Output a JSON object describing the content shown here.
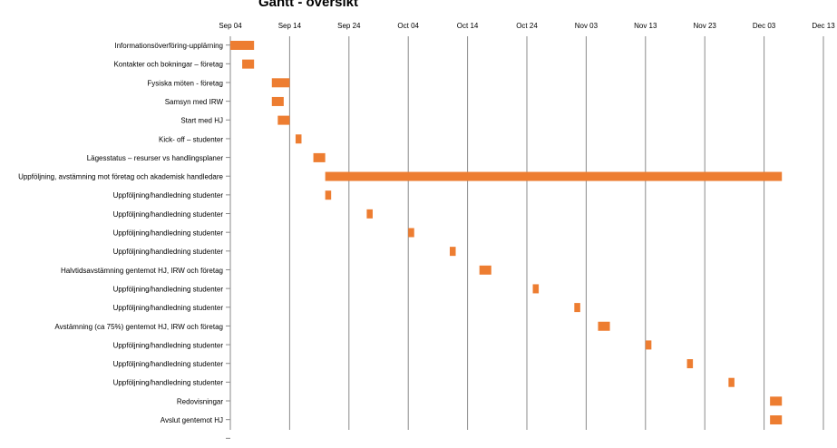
{
  "chart_data": {
    "type": "bar",
    "subtype": "gantt",
    "title": "Gantt - översikt",
    "xlabel": "",
    "ylabel": "",
    "grid": true,
    "legend": "none",
    "bar_color": "#ED7D31",
    "x_axis": {
      "start": "2016-09-04",
      "end": "2016-12-13",
      "ticks": [
        "2016-09-04",
        "2016-09-14",
        "2016-09-24",
        "2016-10-04",
        "2016-10-14",
        "2016-10-24",
        "2016-11-03",
        "2016-11-13",
        "2016-11-23",
        "2016-12-03",
        "2016-12-13"
      ],
      "tick_labels": [
        "Sep 04",
        "Sep 14",
        "Sep 24",
        "Oct 04",
        "Oct 14",
        "Oct 24",
        "Nov 03",
        "Nov 13",
        "Nov 23",
        "Dec 03",
        "Dec 13"
      ]
    },
    "tasks": [
      {
        "label": "Informationsöverföring-upplärning",
        "start": "2016-09-04",
        "end": "2016-09-08"
      },
      {
        "label": "Kontakter och bokningar – företag",
        "start": "2016-09-06",
        "end": "2016-09-08"
      },
      {
        "label": "Fysiska möten - företag",
        "start": "2016-09-11",
        "end": "2016-09-14"
      },
      {
        "label": "Samsyn med IRW",
        "start": "2016-09-11",
        "end": "2016-09-13"
      },
      {
        "label": "Start med HJ",
        "start": "2016-09-12",
        "end": "2016-09-14"
      },
      {
        "label": "Kick- off – studenter",
        "start": "2016-09-15",
        "end": "2016-09-16"
      },
      {
        "label": "Lägesstatus – resurser vs handlingsplaner",
        "start": "2016-09-18",
        "end": "2016-09-20"
      },
      {
        "label": "Uppföljning, avstämning mot företag och akademisk handledare",
        "start": "2016-09-20",
        "end": "2016-12-06"
      },
      {
        "label": "Uppföljning/handledning studenter",
        "start": "2016-09-20",
        "end": "2016-09-21"
      },
      {
        "label": "Uppföljning/handledning studenter",
        "start": "2016-09-27",
        "end": "2016-09-28"
      },
      {
        "label": "Uppföljning/handledning studenter",
        "start": "2016-10-04",
        "end": "2016-10-05"
      },
      {
        "label": "Uppföljning/handledning studenter",
        "start": "2016-10-11",
        "end": "2016-10-12"
      },
      {
        "label": "Halvtidsavstämning gentemot HJ, IRW och företag",
        "start": "2016-10-16",
        "end": "2016-10-18"
      },
      {
        "label": "Uppföljning/handledning studenter",
        "start": "2016-10-25",
        "end": "2016-10-26"
      },
      {
        "label": "Uppföljning/handledning studenter",
        "start": "2016-11-01",
        "end": "2016-11-02"
      },
      {
        "label": "Avstämning (ca 75%) gentemot HJ, IRW och företag",
        "start": "2016-11-05",
        "end": "2016-11-07"
      },
      {
        "label": "Uppföljning/handledning studenter",
        "start": "2016-11-13",
        "end": "2016-11-14"
      },
      {
        "label": "Uppföljning/handledning studenter",
        "start": "2016-11-20",
        "end": "2016-11-21"
      },
      {
        "label": "Uppföljning/handledning studenter",
        "start": "2016-11-27",
        "end": "2016-11-28"
      },
      {
        "label": "Redovisningar",
        "start": "2016-12-04",
        "end": "2016-12-06"
      },
      {
        "label": "Avslut gentemot HJ",
        "start": "2016-12-04",
        "end": "2016-12-06"
      }
    ]
  }
}
